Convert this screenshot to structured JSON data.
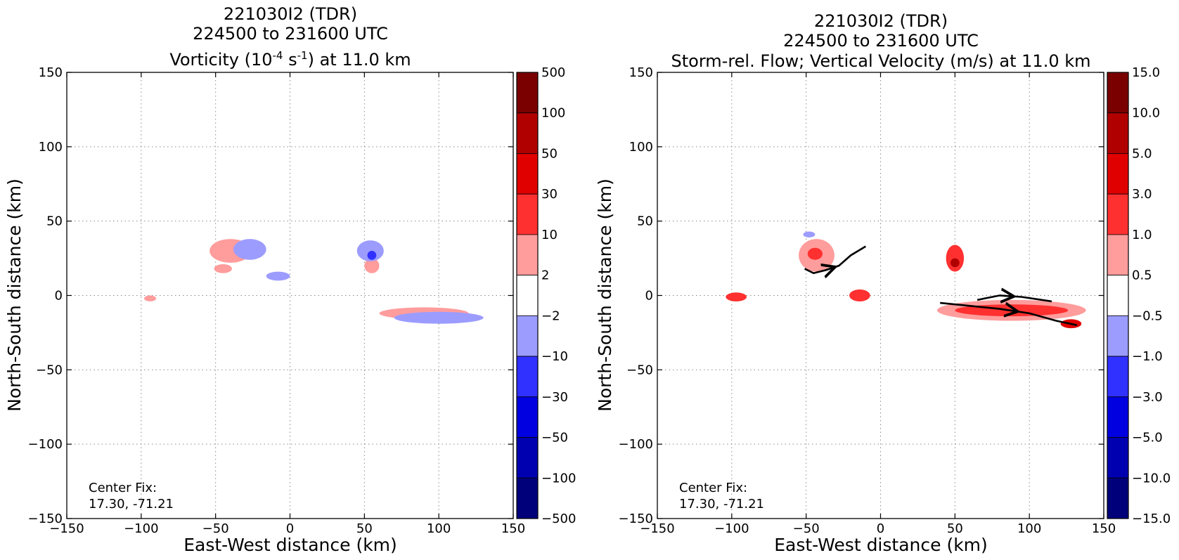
{
  "chart_data": [
    {
      "type": "contour-map",
      "title_lines": [
        "221030I2 (TDR)",
        "224500 to 231600 UTC"
      ],
      "title_var": {
        "pre": "Vorticity (10",
        "sup1": "-4",
        "mid": " s",
        "sup2": "-1",
        "post": ") at 11.0 km"
      },
      "xlabel": "East-West distance (km)",
      "ylabel": "North-South distance (km)",
      "xlim": [
        -150,
        150
      ],
      "ylim": [
        -150,
        150
      ],
      "xticks": [
        -150,
        -100,
        -50,
        0,
        50,
        100,
        150
      ],
      "yticks": [
        -150,
        -100,
        -50,
        0,
        50,
        100,
        150
      ],
      "grid": true,
      "annotation": [
        "Center Fix:",
        "17.30, -71.21"
      ],
      "colorbar": {
        "labels": [
          "500",
          "100",
          "50",
          "30",
          "10",
          "2",
          "−2",
          "−10",
          "−30",
          "−50",
          "−100",
          "−500"
        ],
        "colors": [
          "#7a0000",
          "#b00000",
          "#e00000",
          "#ff3030",
          "#ff9c9c",
          "#ffffff",
          "#9c9cff",
          "#3030ff",
          "#0000e0",
          "#0000b0",
          "#00007a"
        ]
      },
      "features": [
        {
          "level": "2 to 10",
          "x": -40,
          "y": 30,
          "rx": 14,
          "ry": 8
        },
        {
          "level": "-10 to -2",
          "x": -27,
          "y": 31,
          "rx": 11,
          "ry": 7
        },
        {
          "level": "2 to 10",
          "x": -45,
          "y": 18,
          "rx": 6,
          "ry": 3
        },
        {
          "level": "-10 to -2",
          "x": -8,
          "y": 13,
          "rx": 8,
          "ry": 3
        },
        {
          "level": "2 to 10",
          "x": 55,
          "y": 20,
          "rx": 5,
          "ry": 5
        },
        {
          "level": "-10 to -2",
          "x": 54,
          "y": 30,
          "rx": 9,
          "ry": 7
        },
        {
          "level": "-30 to -10",
          "x": 55,
          "y": 27,
          "rx": 3,
          "ry": 3
        },
        {
          "level": "2 to 10",
          "x": 90,
          "y": -12,
          "rx": 30,
          "ry": 4
        },
        {
          "level": "-10 to -2",
          "x": 100,
          "y": -15,
          "rx": 30,
          "ry": 4
        },
        {
          "level": "2 to 10",
          "x": -94,
          "y": -2,
          "rx": 4,
          "ry": 2
        }
      ]
    },
    {
      "type": "contour-map",
      "title_lines": [
        "221030I2 (TDR)",
        "224500 to 231600 UTC",
        "Storm-rel. Flow; Vertical Velocity (m/s) at 11.0 km"
      ],
      "xlabel": "East-West distance (km)",
      "ylabel": "North-South distance (km)",
      "xlim": [
        -150,
        150
      ],
      "ylim": [
        -150,
        150
      ],
      "xticks": [
        -150,
        -100,
        -50,
        0,
        50,
        100,
        150
      ],
      "yticks": [
        -150,
        -100,
        -50,
        0,
        50,
        100,
        150
      ],
      "grid": true,
      "annotation": [
        "Center Fix:",
        "17.30, -71.21"
      ],
      "colorbar": {
        "labels": [
          "15.0",
          "10.0",
          "5.0",
          "3.0",
          "1.0",
          "0.5",
          "−0.5",
          "−1.0",
          "−3.0",
          "−5.0",
          "−10.0",
          "−15.0"
        ],
        "colors": [
          "#7a0000",
          "#b00000",
          "#e00000",
          "#ff3030",
          "#ff9c9c",
          "#ffffff",
          "#9c9cff",
          "#3030ff",
          "#0000e0",
          "#0000b0",
          "#00007a"
        ]
      },
      "features": [
        {
          "level": "0.5 to 1.0",
          "x": -43,
          "y": 27,
          "rx": 12,
          "ry": 11
        },
        {
          "level": "1.0 to 3.0",
          "x": -44,
          "y": 28,
          "rx": 5,
          "ry": 4
        },
        {
          "level": "-1.0 to -0.5",
          "x": -48,
          "y": 41,
          "rx": 4,
          "ry": 2
        },
        {
          "level": "1.0 to 3.0",
          "x": -97,
          "y": -1,
          "rx": 7,
          "ry": 3
        },
        {
          "level": "1.0 to 3.0",
          "x": -14,
          "y": 0,
          "rx": 7,
          "ry": 4
        },
        {
          "level": "1.0 to 3.0",
          "x": 50,
          "y": 25,
          "rx": 6,
          "ry": 9
        },
        {
          "level": "5.0 to 10.0",
          "x": 50,
          "y": 22,
          "rx": 3,
          "ry": 3
        },
        {
          "level": "0.5 to 1.0",
          "x": 88,
          "y": -10,
          "rx": 50,
          "ry": 7
        },
        {
          "level": "1.0 to 3.0",
          "x": 88,
          "y": -10,
          "rx": 38,
          "ry": 4
        },
        {
          "level": "3.0 to 5.0",
          "x": 128,
          "y": -19,
          "rx": 7,
          "ry": 3
        }
      ],
      "streamlines": [
        [
          [
            -51,
            18
          ],
          [
            -45,
            15
          ],
          [
            -37,
            17
          ],
          [
            -28,
            20
          ],
          [
            -20,
            27
          ],
          [
            -10,
            33
          ]
        ],
        [
          [
            40,
            -5
          ],
          [
            60,
            -7
          ],
          [
            80,
            -9
          ],
          [
            100,
            -12
          ],
          [
            118,
            -17
          ],
          [
            132,
            -20
          ]
        ],
        [
          [
            65,
            -3
          ],
          [
            80,
            0
          ],
          [
            95,
            -1
          ],
          [
            115,
            -4
          ]
        ]
      ]
    }
  ]
}
